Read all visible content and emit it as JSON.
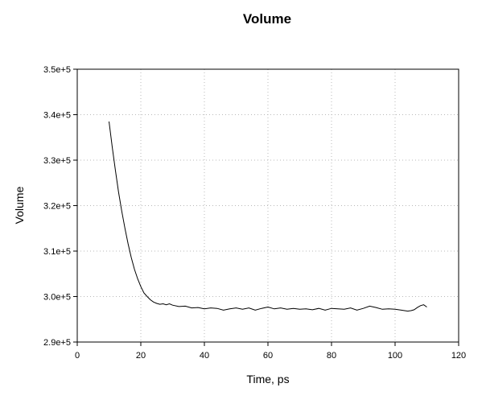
{
  "chart_data": {
    "type": "line",
    "title": "Volume",
    "xlabel": "Time, ps",
    "ylabel": "Volume",
    "xlim": [
      0,
      120
    ],
    "ylim": [
      290000,
      350000
    ],
    "x_ticks": [
      0,
      20,
      40,
      60,
      80,
      100,
      120
    ],
    "x_tick_labels": [
      "0",
      "20",
      "40",
      "60",
      "80",
      "100",
      "120"
    ],
    "y_ticks": [
      290000,
      300000,
      310000,
      320000,
      330000,
      340000,
      350000
    ],
    "y_tick_labels": [
      "2.9e+5",
      "3.0e+5",
      "3.1e+5",
      "3.2e+5",
      "3.3e+5",
      "3.4e+5",
      "3.5e+5"
    ],
    "grid": true,
    "series": [
      {
        "color": "#000000",
        "x": [
          10,
          11,
          12,
          13,
          14,
          15,
          16,
          17,
          18,
          19,
          20,
          21,
          22,
          23,
          24,
          25,
          26,
          27,
          28,
          29,
          30,
          32,
          34,
          36,
          38,
          40,
          42,
          44,
          46,
          48,
          50,
          52,
          54,
          56,
          58,
          60,
          62,
          64,
          66,
          68,
          70,
          72,
          74,
          76,
          78,
          80,
          82,
          84,
          86,
          88,
          90,
          92,
          94,
          96,
          98,
          100,
          102,
          104,
          105,
          106,
          107,
          108,
          109,
          110
        ],
        "y": [
          338500,
          333000,
          327800,
          323000,
          318800,
          315000,
          311600,
          308600,
          306000,
          303900,
          302200,
          300800,
          300000,
          299300,
          298800,
          298500,
          298300,
          298400,
          298200,
          298400,
          298100,
          297800,
          297900,
          297500,
          297600,
          297300,
          297500,
          297400,
          297000,
          297300,
          297500,
          297200,
          297500,
          297000,
          297400,
          297700,
          297300,
          297500,
          297200,
          297400,
          297200,
          297300,
          297100,
          297400,
          297000,
          297400,
          297300,
          297200,
          297500,
          297000,
          297400,
          297900,
          297600,
          297200,
          297300,
          297200,
          297000,
          296800,
          296900,
          297100,
          297600,
          298000,
          298200,
          297700
        ]
      }
    ]
  }
}
